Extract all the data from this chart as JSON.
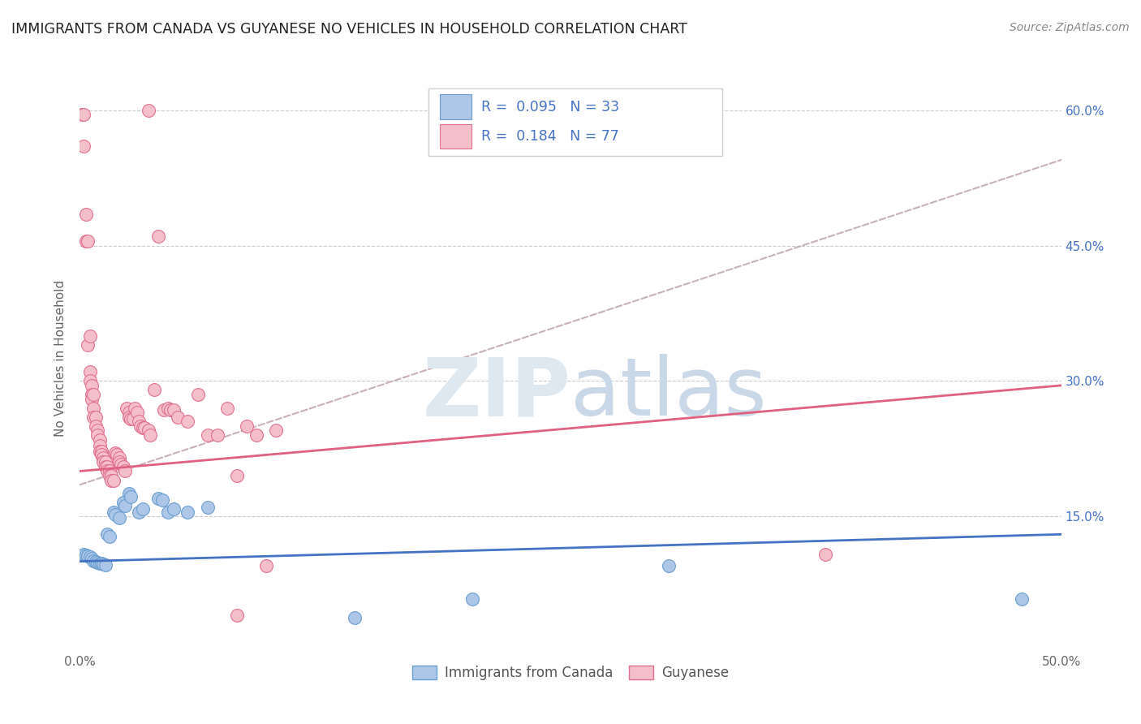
{
  "title": "IMMIGRANTS FROM CANADA VS GUYANESE NO VEHICLES IN HOUSEHOLD CORRELATION CHART",
  "source": "Source: ZipAtlas.com",
  "ylabel": "No Vehicles in Household",
  "xlim": [
    0.0,
    0.5
  ],
  "ylim": [
    0.0,
    0.65
  ],
  "xtick_labels": [
    "0.0%",
    "",
    "",
    "",
    "",
    "50.0%"
  ],
  "xtick_vals": [
    0.0,
    0.1,
    0.2,
    0.3,
    0.4,
    0.5
  ],
  "ytick_labels": [
    "15.0%",
    "30.0%",
    "45.0%",
    "60.0%"
  ],
  "ytick_vals": [
    0.15,
    0.3,
    0.45,
    0.6
  ],
  "canada_color": "#adc6e8",
  "canada_edge": "#6a9fd0",
  "guyanese_color": "#f5bfca",
  "guyanese_edge": "#e07090",
  "canada_line_color": "#4472c4",
  "guyanese_line_color": "#e06080",
  "regression_dashed_color": "#c8b0b8",
  "watermark_color": "#dde8f0",
  "background_color": "#ffffff",
  "canada_line": [
    [
      0.0,
      0.1
    ],
    [
      0.5,
      0.13
    ]
  ],
  "guyanese_line": [
    [
      0.0,
      0.2
    ],
    [
      0.5,
      0.295
    ]
  ],
  "dashed_line": [
    [
      0.0,
      0.185
    ],
    [
      0.5,
      0.545
    ]
  ],
  "canada_scatter": [
    [
      0.002,
      0.108
    ],
    [
      0.003,
      0.107
    ],
    [
      0.004,
      0.106
    ],
    [
      0.005,
      0.105
    ],
    [
      0.006,
      0.103
    ],
    [
      0.007,
      0.101
    ],
    [
      0.008,
      0.1
    ],
    [
      0.009,
      0.099
    ],
    [
      0.01,
      0.098
    ],
    [
      0.011,
      0.098
    ],
    [
      0.012,
      0.097
    ],
    [
      0.013,
      0.096
    ],
    [
      0.014,
      0.13
    ],
    [
      0.015,
      0.128
    ],
    [
      0.017,
      0.155
    ],
    [
      0.018,
      0.152
    ],
    [
      0.02,
      0.148
    ],
    [
      0.022,
      0.165
    ],
    [
      0.023,
      0.162
    ],
    [
      0.025,
      0.175
    ],
    [
      0.026,
      0.172
    ],
    [
      0.03,
      0.155
    ],
    [
      0.032,
      0.158
    ],
    [
      0.04,
      0.17
    ],
    [
      0.042,
      0.168
    ],
    [
      0.045,
      0.155
    ],
    [
      0.048,
      0.158
    ],
    [
      0.055,
      0.155
    ],
    [
      0.065,
      0.16
    ],
    [
      0.14,
      0.038
    ],
    [
      0.2,
      0.058
    ],
    [
      0.3,
      0.095
    ],
    [
      0.48,
      0.058
    ]
  ],
  "guyanese_scatter": [
    [
      0.001,
      0.595
    ],
    [
      0.002,
      0.595
    ],
    [
      0.002,
      0.56
    ],
    [
      0.003,
      0.485
    ],
    [
      0.003,
      0.455
    ],
    [
      0.004,
      0.455
    ],
    [
      0.004,
      0.34
    ],
    [
      0.005,
      0.35
    ],
    [
      0.005,
      0.31
    ],
    [
      0.005,
      0.3
    ],
    [
      0.006,
      0.295
    ],
    [
      0.006,
      0.285
    ],
    [
      0.006,
      0.28
    ],
    [
      0.007,
      0.285
    ],
    [
      0.007,
      0.27
    ],
    [
      0.007,
      0.26
    ],
    [
      0.008,
      0.26
    ],
    [
      0.008,
      0.25
    ],
    [
      0.009,
      0.245
    ],
    [
      0.009,
      0.24
    ],
    [
      0.01,
      0.235
    ],
    [
      0.01,
      0.228
    ],
    [
      0.01,
      0.222
    ],
    [
      0.011,
      0.222
    ],
    [
      0.011,
      0.218
    ],
    [
      0.012,
      0.215
    ],
    [
      0.012,
      0.21
    ],
    [
      0.013,
      0.21
    ],
    [
      0.013,
      0.205
    ],
    [
      0.014,
      0.205
    ],
    [
      0.014,
      0.2
    ],
    [
      0.015,
      0.2
    ],
    [
      0.015,
      0.195
    ],
    [
      0.016,
      0.195
    ],
    [
      0.016,
      0.19
    ],
    [
      0.017,
      0.19
    ],
    [
      0.018,
      0.22
    ],
    [
      0.019,
      0.218
    ],
    [
      0.02,
      0.215
    ],
    [
      0.02,
      0.21
    ],
    [
      0.021,
      0.208
    ],
    [
      0.022,
      0.205
    ],
    [
      0.023,
      0.2
    ],
    [
      0.024,
      0.27
    ],
    [
      0.025,
      0.265
    ],
    [
      0.025,
      0.26
    ],
    [
      0.026,
      0.258
    ],
    [
      0.027,
      0.258
    ],
    [
      0.028,
      0.27
    ],
    [
      0.029,
      0.265
    ],
    [
      0.03,
      0.255
    ],
    [
      0.031,
      0.25
    ],
    [
      0.032,
      0.248
    ],
    [
      0.033,
      0.248
    ],
    [
      0.035,
      0.245
    ],
    [
      0.036,
      0.24
    ],
    [
      0.038,
      0.29
    ],
    [
      0.04,
      0.46
    ],
    [
      0.043,
      0.268
    ],
    [
      0.045,
      0.27
    ],
    [
      0.046,
      0.268
    ],
    [
      0.048,
      0.268
    ],
    [
      0.05,
      0.26
    ],
    [
      0.055,
      0.255
    ],
    [
      0.06,
      0.285
    ],
    [
      0.065,
      0.24
    ],
    [
      0.07,
      0.24
    ],
    [
      0.075,
      0.27
    ],
    [
      0.08,
      0.195
    ],
    [
      0.085,
      0.25
    ],
    [
      0.09,
      0.24
    ],
    [
      0.095,
      0.095
    ],
    [
      0.1,
      0.245
    ],
    [
      0.38,
      0.108
    ],
    [
      0.035,
      0.6
    ],
    [
      0.08,
      0.04
    ]
  ]
}
